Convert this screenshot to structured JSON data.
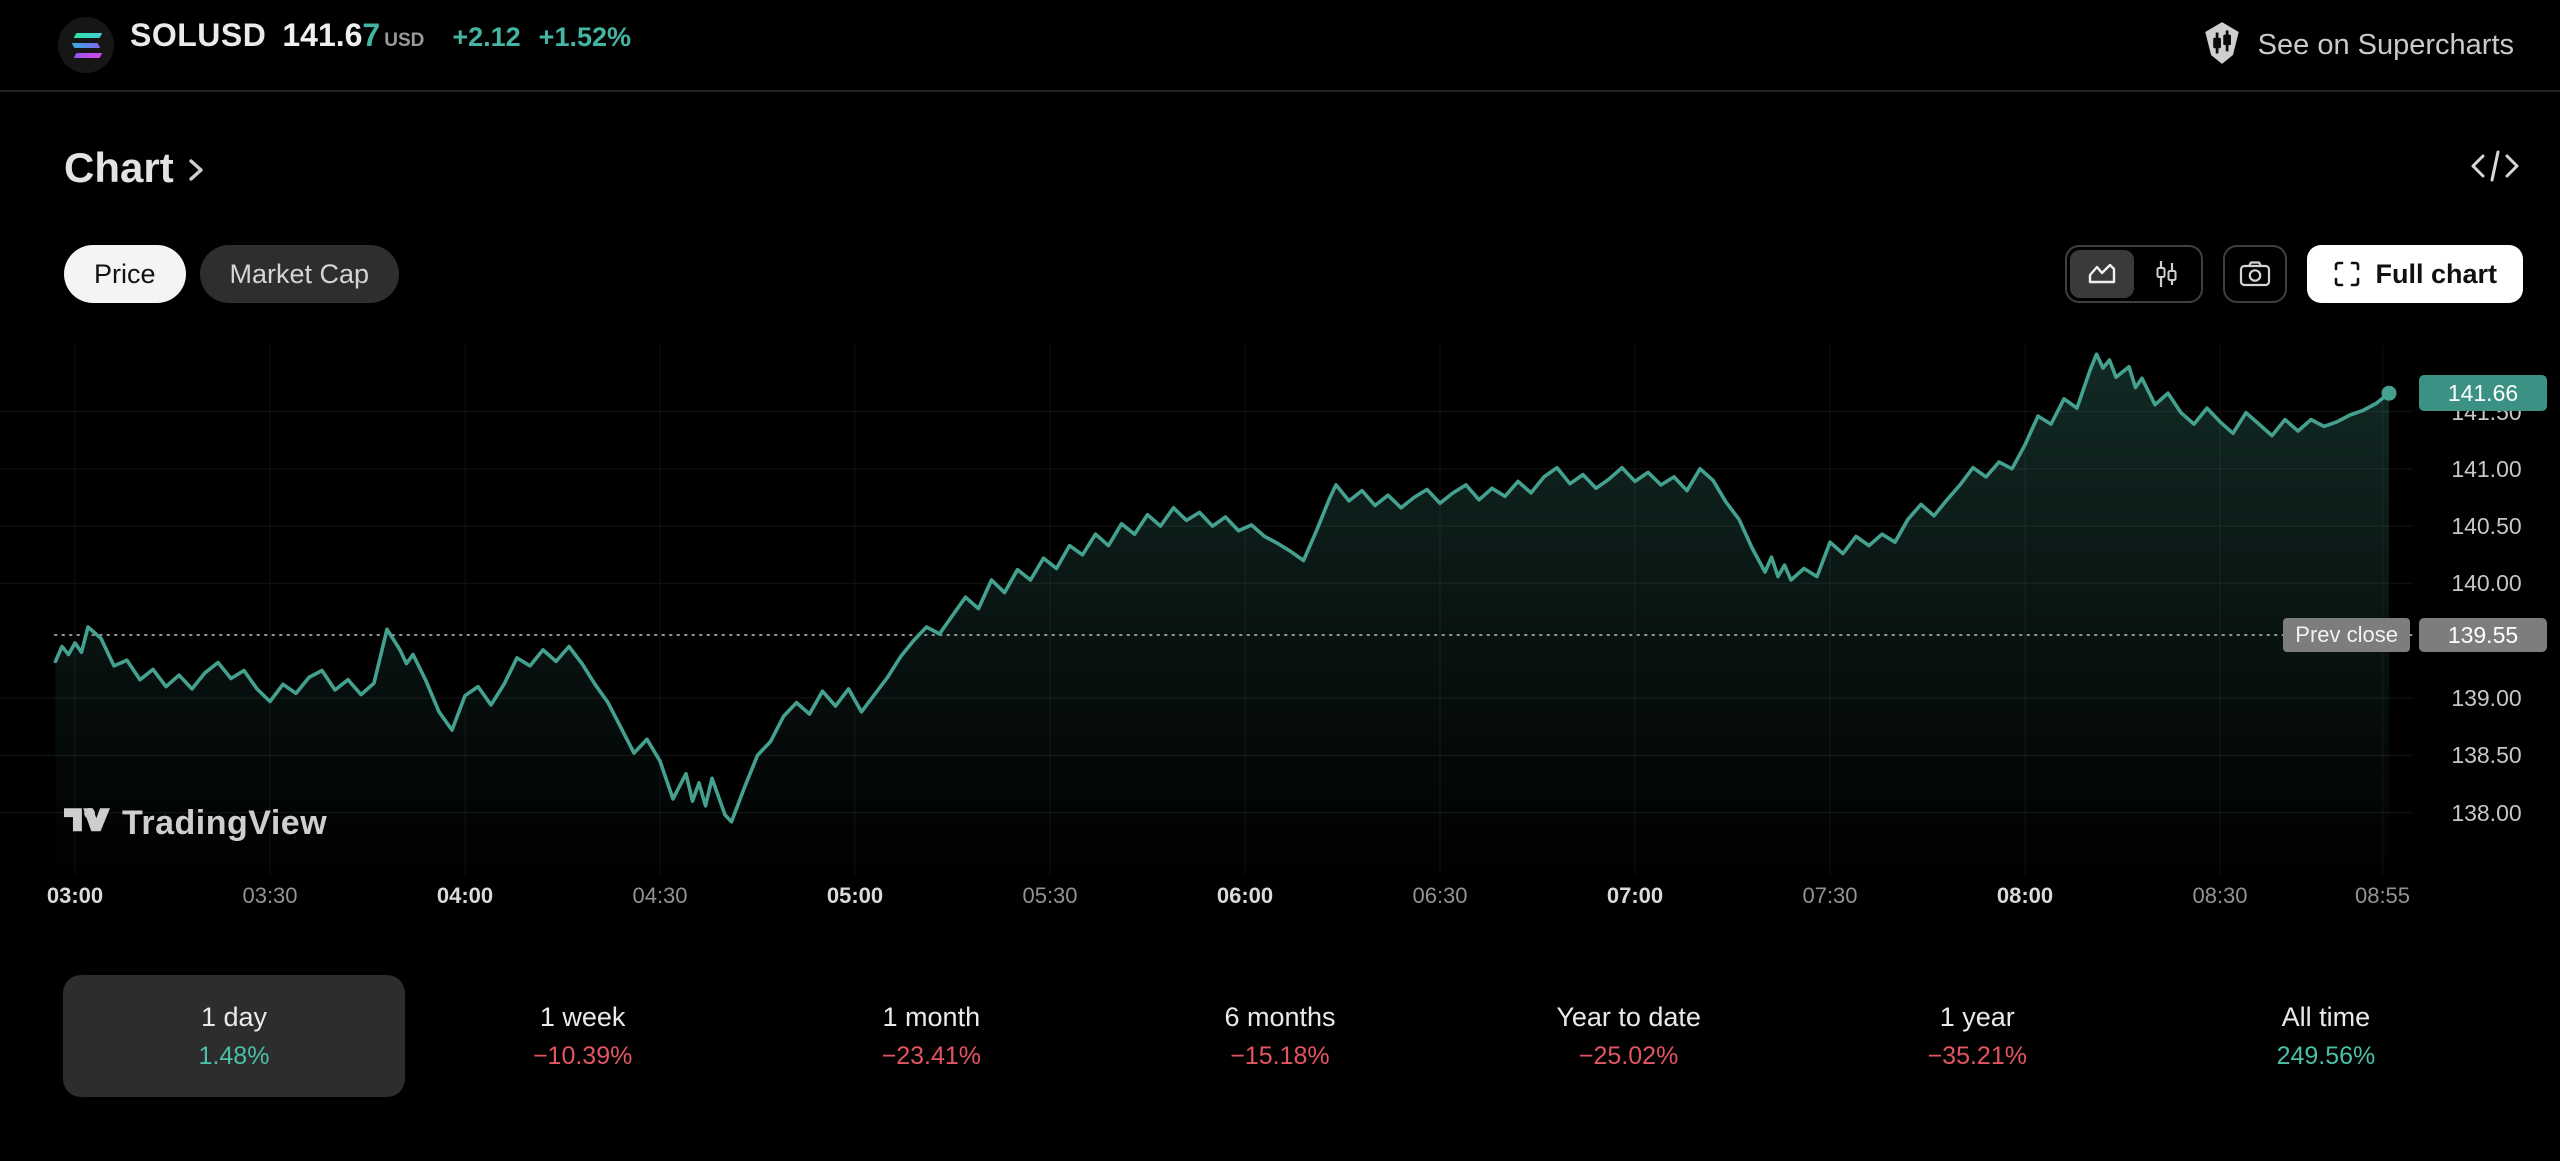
{
  "header": {
    "symbol": "SOLUSD",
    "price_main": "141.6",
    "price_last_digit": "7",
    "currency": "USD",
    "change_abs": "+2.12",
    "change_pct": "+1.52%",
    "supercharts_label": "See on Supercharts"
  },
  "section": {
    "title": "Chart",
    "chevron": "›"
  },
  "toolbar": {
    "price_toggle": "Price",
    "market_cap_toggle": "Market Cap",
    "full_chart_label": "Full chart"
  },
  "watermark": {
    "brand": "TradingView"
  },
  "chart_data": {
    "type": "area",
    "symbol": "SOLUSD",
    "interval": "1 day",
    "current_price": 141.66,
    "current_price_label": "141.66",
    "prev_close": 139.55,
    "prev_close_label": "139.55",
    "prev_close_tag": "Prev close",
    "ylim": [
      137.6,
      142.1
    ],
    "grid": true,
    "y_ticks": [
      {
        "label": "141.50",
        "value": 141.5
      },
      {
        "label": "141.00",
        "value": 141.0
      },
      {
        "label": "140.50",
        "value": 140.5
      },
      {
        "label": "140.00",
        "value": 140.0
      },
      {
        "label": "139.00",
        "value": 139.0
      },
      {
        "label": "138.50",
        "value": 138.5
      },
      {
        "label": "138.00",
        "value": 138.0
      }
    ],
    "x_ticks": [
      {
        "label": "03:00",
        "t": 180,
        "bold": true
      },
      {
        "label": "03:30",
        "t": 210,
        "bold": false
      },
      {
        "label": "04:00",
        "t": 240,
        "bold": true
      },
      {
        "label": "04:30",
        "t": 270,
        "bold": false
      },
      {
        "label": "05:00",
        "t": 300,
        "bold": true
      },
      {
        "label": "05:30",
        "t": 330,
        "bold": false
      },
      {
        "label": "06:00",
        "t": 360,
        "bold": true
      },
      {
        "label": "06:30",
        "t": 390,
        "bold": false
      },
      {
        "label": "07:00",
        "t": 420,
        "bold": true
      },
      {
        "label": "07:30",
        "t": 450,
        "bold": false
      },
      {
        "label": "08:00",
        "t": 480,
        "bold": true
      },
      {
        "label": "08:30",
        "t": 510,
        "bold": false
      },
      {
        "label": "08:55",
        "t": 535,
        "bold": false
      }
    ],
    "points": [
      [
        177,
        139.32
      ],
      [
        178,
        139.45
      ],
      [
        179,
        139.38
      ],
      [
        180,
        139.48
      ],
      [
        181,
        139.4
      ],
      [
        182,
        139.62
      ],
      [
        184,
        139.52
      ],
      [
        186,
        139.28
      ],
      [
        188,
        139.33
      ],
      [
        190,
        139.16
      ],
      [
        192,
        139.25
      ],
      [
        194,
        139.1
      ],
      [
        196,
        139.2
      ],
      [
        198,
        139.08
      ],
      [
        200,
        139.22
      ],
      [
        202,
        139.31
      ],
      [
        204,
        139.17
      ],
      [
        206,
        139.24
      ],
      [
        208,
        139.08
      ],
      [
        210,
        138.97
      ],
      [
        212,
        139.12
      ],
      [
        214,
        139.04
      ],
      [
        216,
        139.18
      ],
      [
        218,
        139.24
      ],
      [
        220,
        139.07
      ],
      [
        222,
        139.16
      ],
      [
        224,
        139.03
      ],
      [
        226,
        139.13
      ],
      [
        228,
        139.6
      ],
      [
        229,
        139.51
      ],
      [
        230,
        139.42
      ],
      [
        231,
        139.3
      ],
      [
        232,
        139.38
      ],
      [
        234,
        139.15
      ],
      [
        236,
        138.88
      ],
      [
        238,
        138.72
      ],
      [
        240,
        139.02
      ],
      [
        242,
        139.1
      ],
      [
        244,
        138.94
      ],
      [
        246,
        139.12
      ],
      [
        248,
        139.35
      ],
      [
        250,
        139.28
      ],
      [
        252,
        139.42
      ],
      [
        254,
        139.32
      ],
      [
        256,
        139.45
      ],
      [
        258,
        139.3
      ],
      [
        260,
        139.12
      ],
      [
        262,
        138.96
      ],
      [
        264,
        138.74
      ],
      [
        266,
        138.52
      ],
      [
        268,
        138.64
      ],
      [
        270,
        138.45
      ],
      [
        272,
        138.12
      ],
      [
        274,
        138.34
      ],
      [
        275,
        138.1
      ],
      [
        276,
        138.26
      ],
      [
        277,
        138.06
      ],
      [
        278,
        138.3
      ],
      [
        280,
        137.98
      ],
      [
        281,
        137.92
      ],
      [
        283,
        138.22
      ],
      [
        285,
        138.5
      ],
      [
        287,
        138.62
      ],
      [
        289,
        138.84
      ],
      [
        291,
        138.96
      ],
      [
        293,
        138.86
      ],
      [
        295,
        139.06
      ],
      [
        297,
        138.93
      ],
      [
        299,
        139.08
      ],
      [
        301,
        138.88
      ],
      [
        303,
        139.03
      ],
      [
        305,
        139.18
      ],
      [
        307,
        139.36
      ],
      [
        309,
        139.5
      ],
      [
        311,
        139.62
      ],
      [
        313,
        139.56
      ],
      [
        315,
        139.72
      ],
      [
        317,
        139.88
      ],
      [
        319,
        139.78
      ],
      [
        321,
        140.03
      ],
      [
        323,
        139.92
      ],
      [
        325,
        140.12
      ],
      [
        327,
        140.03
      ],
      [
        329,
        140.22
      ],
      [
        331,
        140.13
      ],
      [
        333,
        140.33
      ],
      [
        335,
        140.25
      ],
      [
        337,
        140.43
      ],
      [
        339,
        140.33
      ],
      [
        341,
        140.52
      ],
      [
        343,
        140.43
      ],
      [
        345,
        140.6
      ],
      [
        347,
        140.5
      ],
      [
        349,
        140.66
      ],
      [
        351,
        140.55
      ],
      [
        353,
        140.62
      ],
      [
        355,
        140.5
      ],
      [
        357,
        140.58
      ],
      [
        359,
        140.46
      ],
      [
        361,
        140.51
      ],
      [
        363,
        140.41
      ],
      [
        365,
        140.35
      ],
      [
        367,
        140.28
      ],
      [
        369,
        140.2
      ],
      [
        371,
        140.46
      ],
      [
        373,
        140.74
      ],
      [
        374,
        140.86
      ],
      [
        376,
        140.72
      ],
      [
        378,
        140.81
      ],
      [
        380,
        140.68
      ],
      [
        382,
        140.77
      ],
      [
        384,
        140.66
      ],
      [
        386,
        140.75
      ],
      [
        388,
        140.82
      ],
      [
        390,
        140.7
      ],
      [
        392,
        140.79
      ],
      [
        394,
        140.86
      ],
      [
        396,
        140.73
      ],
      [
        398,
        140.83
      ],
      [
        400,
        140.76
      ],
      [
        402,
        140.89
      ],
      [
        404,
        140.79
      ],
      [
        406,
        140.93
      ],
      [
        408,
        141.01
      ],
      [
        410,
        140.87
      ],
      [
        412,
        140.95
      ],
      [
        414,
        140.83
      ],
      [
        416,
        140.91
      ],
      [
        418,
        141.01
      ],
      [
        420,
        140.89
      ],
      [
        422,
        140.97
      ],
      [
        424,
        140.86
      ],
      [
        426,
        140.93
      ],
      [
        428,
        140.81
      ],
      [
        430,
        141.0
      ],
      [
        432,
        140.9
      ],
      [
        434,
        140.71
      ],
      [
        436,
        140.56
      ],
      [
        438,
        140.31
      ],
      [
        440,
        140.1
      ],
      [
        441,
        140.23
      ],
      [
        442,
        140.06
      ],
      [
        443,
        140.16
      ],
      [
        444,
        140.03
      ],
      [
        446,
        140.13
      ],
      [
        448,
        140.06
      ],
      [
        450,
        140.36
      ],
      [
        452,
        140.26
      ],
      [
        454,
        140.41
      ],
      [
        456,
        140.33
      ],
      [
        458,
        140.43
      ],
      [
        460,
        140.36
      ],
      [
        462,
        140.56
      ],
      [
        464,
        140.69
      ],
      [
        466,
        140.59
      ],
      [
        468,
        140.73
      ],
      [
        470,
        140.86
      ],
      [
        472,
        141.01
      ],
      [
        474,
        140.93
      ],
      [
        476,
        141.06
      ],
      [
        478,
        141.0
      ],
      [
        480,
        141.21
      ],
      [
        482,
        141.46
      ],
      [
        484,
        141.39
      ],
      [
        486,
        141.61
      ],
      [
        488,
        141.53
      ],
      [
        490,
        141.86
      ],
      [
        491,
        142.0
      ],
      [
        492,
        141.88
      ],
      [
        493,
        141.95
      ],
      [
        494,
        141.8
      ],
      [
        496,
        141.89
      ],
      [
        497,
        141.71
      ],
      [
        498,
        141.79
      ],
      [
        500,
        141.56
      ],
      [
        502,
        141.66
      ],
      [
        504,
        141.49
      ],
      [
        506,
        141.39
      ],
      [
        508,
        141.53
      ],
      [
        510,
        141.41
      ],
      [
        512,
        141.31
      ],
      [
        514,
        141.49
      ],
      [
        516,
        141.39
      ],
      [
        518,
        141.29
      ],
      [
        520,
        141.43
      ],
      [
        522,
        141.33
      ],
      [
        524,
        141.43
      ],
      [
        526,
        141.37
      ],
      [
        528,
        141.41
      ],
      [
        530,
        141.47
      ],
      [
        532,
        141.51
      ],
      [
        534,
        141.57
      ],
      [
        536,
        141.66
      ]
    ],
    "colors": {
      "line": "#45a18f",
      "fill_top": "rgba(69,161,143,0.26)",
      "fill_bottom": "rgba(69,161,143,0)",
      "current_badge_bg": "#3b9284",
      "prev_badge_bg": "#7d7d7d",
      "up": "#4bbfa8",
      "down": "#e25561"
    }
  },
  "periods": [
    {
      "label": "1 day",
      "value": "1.48%",
      "direction": "up",
      "selected": true
    },
    {
      "label": "1 week",
      "value": "−10.39%",
      "direction": "down",
      "selected": false
    },
    {
      "label": "1 month",
      "value": "−23.41%",
      "direction": "down",
      "selected": false
    },
    {
      "label": "6 months",
      "value": "−15.18%",
      "direction": "down",
      "selected": false
    },
    {
      "label": "Year to date",
      "value": "−25.02%",
      "direction": "down",
      "selected": false
    },
    {
      "label": "1 year",
      "value": "−35.21%",
      "direction": "down",
      "selected": false
    },
    {
      "label": "All time",
      "value": "249.56%",
      "direction": "up",
      "selected": false
    }
  ]
}
